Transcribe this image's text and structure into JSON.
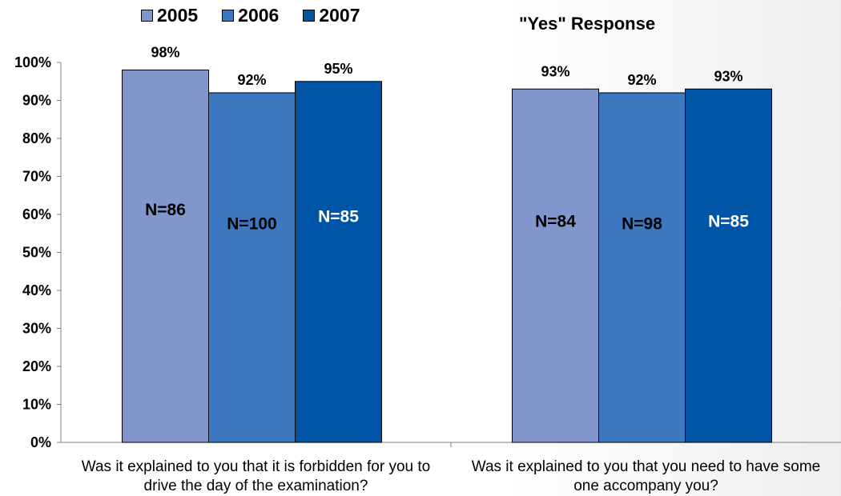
{
  "chart_data": {
    "type": "bar",
    "title": "\"Yes\" Response",
    "categories": [
      [
        "Was it explained to you that it is forbidden for you to",
        "drive the day of the examination?"
      ],
      [
        "Was it explained to you that you need to have some",
        "one accompany you?"
      ]
    ],
    "series": [
      {
        "name": "2005",
        "color": "#8096CC",
        "values": [
          98,
          93
        ],
        "value_labels": [
          "98%",
          "93%"
        ],
        "n_labels": [
          "N=86",
          "N=84"
        ],
        "n_label_color": "#000000"
      },
      {
        "name": "2006",
        "color": "#3B78C0",
        "values": [
          92,
          92
        ],
        "value_labels": [
          "92%",
          "92%"
        ],
        "n_labels": [
          "N=100",
          "N=98"
        ],
        "n_label_color": "#000000"
      },
      {
        "name": "2007",
        "color": "#0054A6",
        "values": [
          95,
          93
        ],
        "value_labels": [
          "95%",
          "93%"
        ],
        "n_labels": [
          "N=85",
          "N=85"
        ],
        "n_label_color": "#ffffff"
      }
    ],
    "ylim": [
      0,
      100
    ],
    "yticks": [
      "0%",
      "10%",
      "20%",
      "30%",
      "40%",
      "50%",
      "60%",
      "70%",
      "80%",
      "90%",
      "100%"
    ],
    "legend_position": "top-left",
    "grid": false
  }
}
